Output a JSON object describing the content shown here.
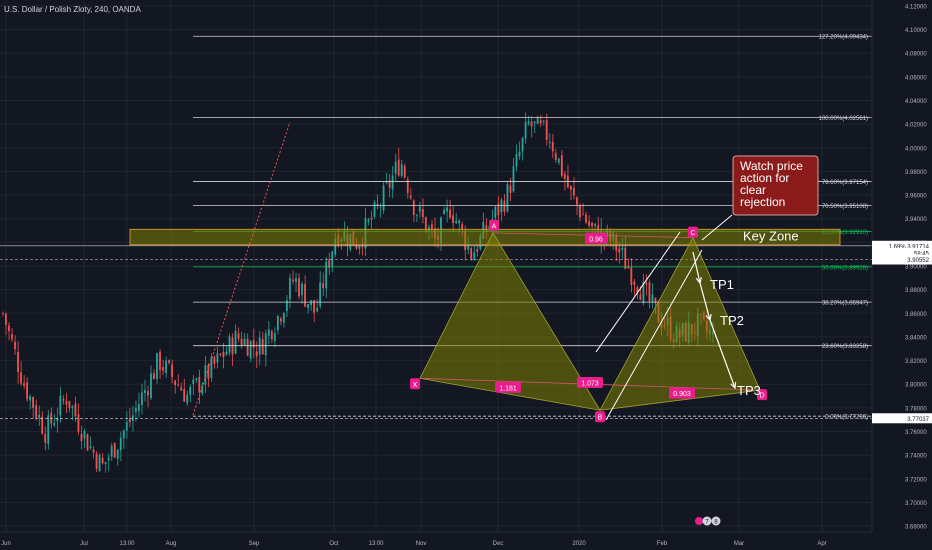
{
  "header": {
    "symbol_title": "U.S. Dollar / Polish Zloty, 240, OANDA"
  },
  "colors": {
    "background": "#131722",
    "grid": "#1f2430",
    "candle_up": "#26a69a",
    "candle_down": "#ef5350",
    "fib_line": "#d1d4dc",
    "pattern_fill": "#808000",
    "label_pink": "#e91e8c",
    "callout_fill": "#8b1a1a",
    "green_line": "#00c853"
  },
  "chart_data": {
    "type": "candlestick",
    "instrument": "USD/PLN",
    "timeframe": "240",
    "source": "OANDA",
    "x_ticks": [
      "Jun",
      "Jul",
      "13:00",
      "Aug",
      "Sep",
      "Oct",
      "13:00",
      "Nov",
      "Dec",
      "2020",
      "Feb",
      "Mar",
      "Apr"
    ],
    "y_ticks": [
      "4.12000",
      "4.10000",
      "4.08000",
      "4.06000",
      "4.04000",
      "4.02000",
      "4.00000",
      "3.98000",
      "3.96000",
      "3.94000",
      "3.92000",
      "3.90000",
      "3.88000",
      "3.86000",
      "3.84000",
      "3.82000",
      "3.80000",
      "3.78000",
      "3.76000",
      "3.74000",
      "3.72000",
      "3.70000",
      "3.68000"
    ],
    "ylim": [
      3.675,
      4.125
    ],
    "price_path": [
      [
        0.0,
        3.86
      ],
      [
        0.03,
        3.8
      ],
      [
        0.06,
        3.76
      ],
      [
        0.09,
        3.79
      ],
      [
        0.12,
        3.75
      ],
      [
        0.14,
        3.73
      ],
      [
        0.18,
        3.77
      ],
      [
        0.22,
        3.82
      ],
      [
        0.26,
        3.79
      ],
      [
        0.29,
        3.81
      ],
      [
        0.33,
        3.84
      ],
      [
        0.36,
        3.83
      ],
      [
        0.39,
        3.86
      ],
      [
        0.41,
        3.89
      ],
      [
        0.44,
        3.86
      ],
      [
        0.47,
        3.93
      ],
      [
        0.5,
        3.92
      ],
      [
        0.53,
        3.95
      ],
      [
        0.56,
        3.99
      ],
      [
        0.58,
        3.95
      ],
      [
        0.61,
        3.92
      ],
      [
        0.63,
        3.95
      ],
      [
        0.66,
        3.91
      ],
      [
        0.69,
        3.94
      ],
      [
        0.71,
        3.96
      ],
      [
        0.74,
        4.02
      ],
      [
        0.77,
        4.01
      ],
      [
        0.8,
        3.96
      ],
      [
        0.83,
        3.93
      ],
      [
        0.86,
        3.92
      ],
      [
        0.89,
        3.89
      ],
      [
        0.92,
        3.86
      ],
      [
        0.95,
        3.84
      ],
      [
        0.98,
        3.85
      ],
      [
        1.0,
        3.84
      ]
    ],
    "fib_levels": [
      {
        "label": "127.20%(4.09434)",
        "value": 4.09434
      },
      {
        "label": "100.00%(4.02561)",
        "value": 4.02561
      },
      {
        "label": "78.60%(3.97154)",
        "value": 3.97154
      },
      {
        "label": "70.50%(3.95108)",
        "value": 3.95108
      },
      {
        "label": "61.80%(3.92910)",
        "value": 3.9291
      },
      {
        "label": "50.00%(3.89928)",
        "value": 3.89928
      },
      {
        "label": "38.20%(3.86947)",
        "value": 3.86947
      },
      {
        "label": "23.60%(3.83258)",
        "value": 3.83258
      },
      {
        "label": "0.00%(3.77296)",
        "value": 3.77296
      }
    ],
    "key_zone": {
      "label": "Key Zone",
      "top": 3.931,
      "bottom": 3.918
    },
    "pattern_points": [
      {
        "label": "X",
        "value": 3.805
      },
      {
        "label": "A",
        "value": 3.928
      },
      {
        "label": "B",
        "value": 3.778
      },
      {
        "label": "C",
        "value": 3.924
      },
      {
        "label": "D",
        "value": 3.795
      }
    ],
    "pattern_ratios": [
      "0.96",
      "1.181",
      "1.073",
      "0.903"
    ],
    "targets": [
      "TP1",
      "TP2",
      "TP3"
    ],
    "price_badges": [
      {
        "label": "1.69% ",
        "value": "3.91714"
      },
      {
        "label": "",
        "value": "58:45"
      },
      {
        "label": "",
        "value": "3.90552"
      },
      {
        "label": "",
        "value": "3.77037"
      }
    ],
    "bottom_icons": [
      "pink-circle",
      "7",
      "8"
    ]
  },
  "callout": {
    "text_lines": [
      "Watch price",
      "action for",
      "clear",
      "rejection"
    ]
  }
}
